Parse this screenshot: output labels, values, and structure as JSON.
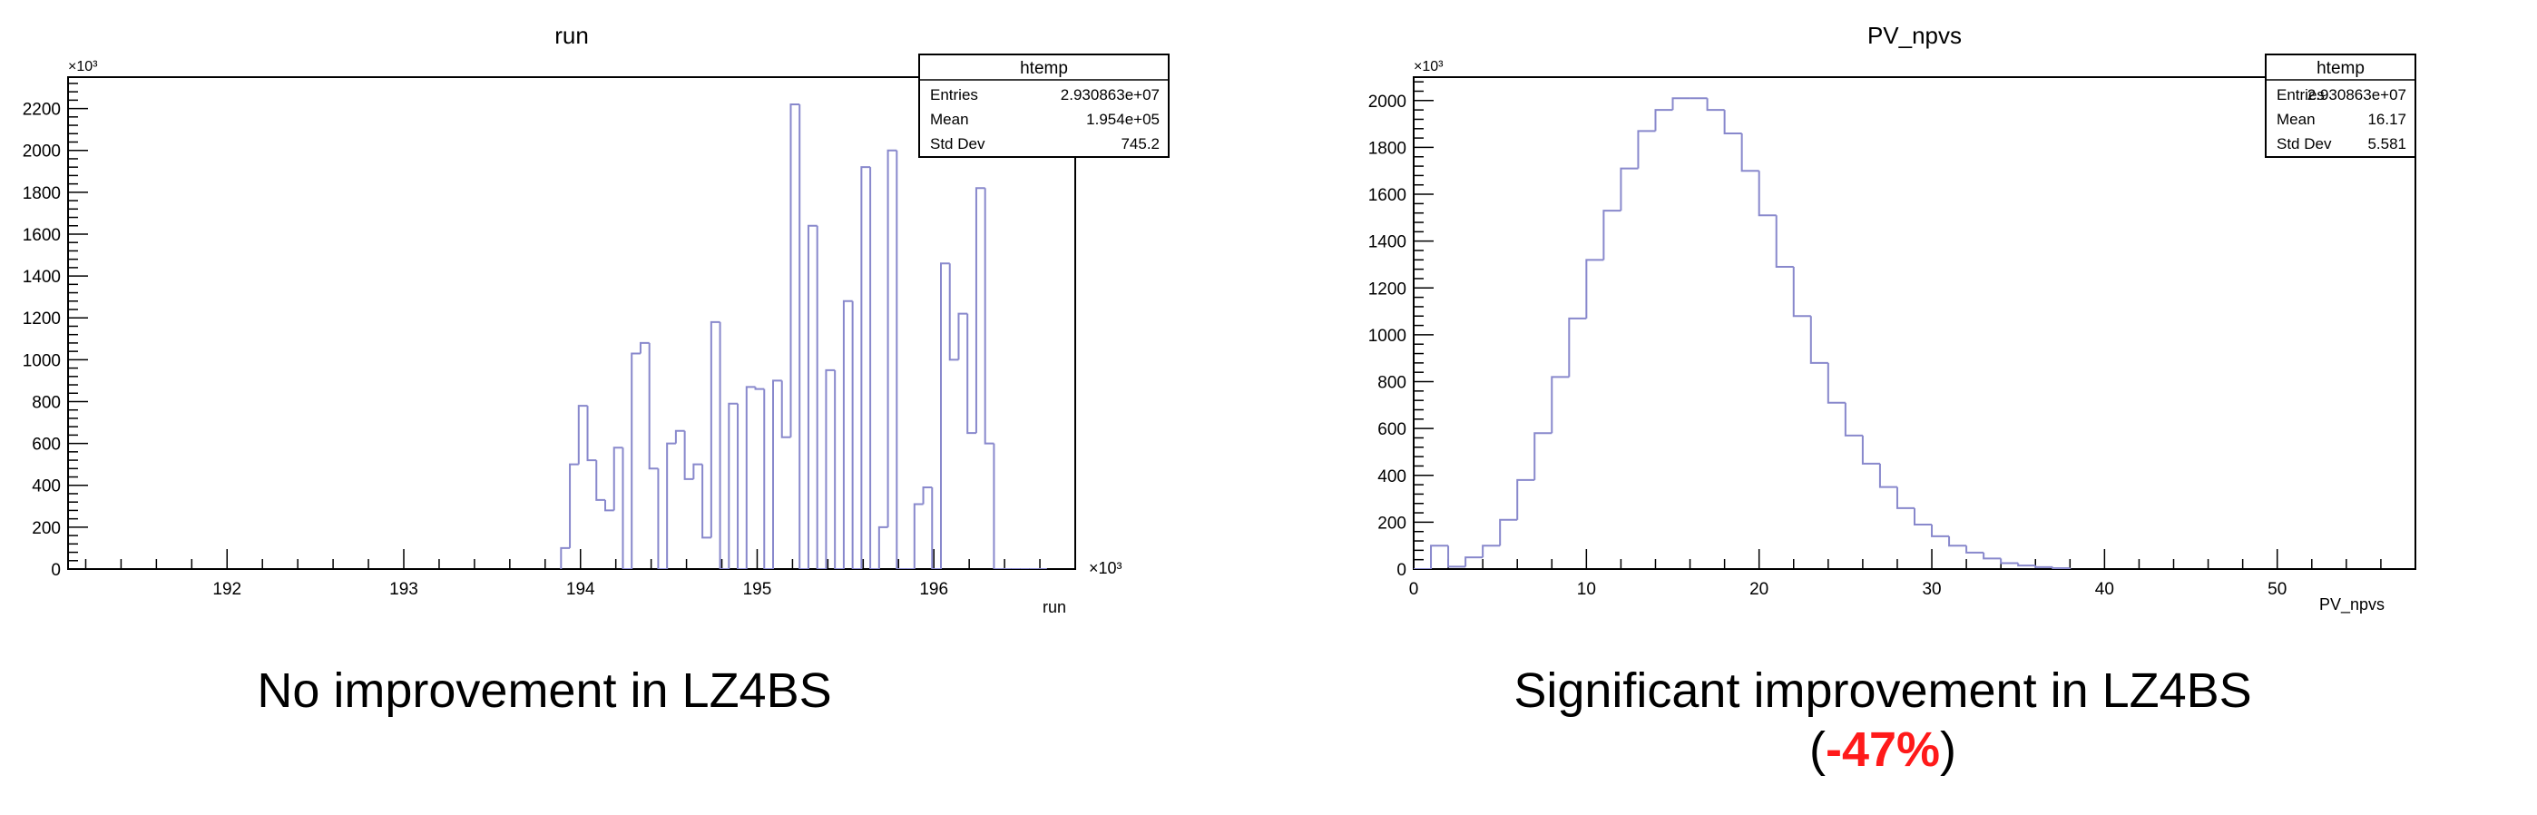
{
  "chart_data": [
    {
      "type": "histogram",
      "title": "run",
      "xlabel": "run",
      "x_exponent": "×10³",
      "y_exponent": "×10³",
      "xlim": [
        191.1,
        196.8
      ],
      "ylim": [
        0,
        2350
      ],
      "xticks": [
        192,
        193,
        194,
        195,
        196
      ],
      "yticks": [
        0,
        200,
        400,
        600,
        800,
        1000,
        1200,
        1400,
        1600,
        1800,
        2000,
        2200
      ],
      "bin_edges": [
        193.89,
        193.94,
        193.99,
        194.04,
        194.09,
        194.14,
        194.19,
        194.24,
        194.29,
        194.34,
        194.39,
        194.44,
        194.49,
        194.54,
        194.59,
        194.64,
        194.69,
        194.74,
        194.79,
        194.84,
        194.89,
        194.94,
        194.99,
        195.04,
        195.09,
        195.14,
        195.19,
        195.24,
        195.29,
        195.34,
        195.39,
        195.44,
        195.49,
        195.54,
        195.59,
        195.64,
        195.69,
        195.74,
        195.79,
        195.84,
        195.89,
        195.94,
        195.99,
        196.04,
        196.09,
        196.14,
        196.19,
        196.24,
        196.29,
        196.34,
        196.39,
        196.44,
        196.49,
        196.54,
        196.59,
        196.64
      ],
      "values": [
        100,
        500,
        780,
        520,
        330,
        280,
        580,
        0,
        1030,
        1080,
        480,
        0,
        600,
        660,
        430,
        500,
        150,
        1180,
        0,
        790,
        0,
        870,
        860,
        0,
        900,
        630,
        2220,
        0,
        1640,
        0,
        950,
        0,
        1280,
        0,
        1920,
        0,
        200,
        2000,
        0,
        0,
        310,
        390,
        0,
        1460,
        1000,
        1220,
        650,
        1820,
        600,
        0,
        0,
        0,
        0,
        0,
        0
      ],
      "line_color": "#8888cc",
      "stats": {
        "header": "htemp",
        "rows": [
          {
            "label": "Entries",
            "value": "2.930863e+07"
          },
          {
            "label": "Mean",
            "value": "1.954e+05"
          },
          {
            "label": "Std Dev",
            "value": "745.2"
          }
        ]
      }
    },
    {
      "type": "histogram",
      "title": "PV_npvs",
      "xlabel": "PV_npvs",
      "x_exponent": "",
      "y_exponent": "×10³",
      "xlim": [
        0,
        58
      ],
      "ylim": [
        0,
        2100
      ],
      "xticks": [
        0,
        10,
        20,
        30,
        40,
        50
      ],
      "yticks": [
        0,
        200,
        400,
        600,
        800,
        1000,
        1200,
        1400,
        1600,
        1800,
        2000
      ],
      "bin_edges": [
        0,
        1,
        2,
        3,
        4,
        5,
        6,
        7,
        8,
        9,
        10,
        11,
        12,
        13,
        14,
        15,
        16,
        17,
        18,
        19,
        20,
        21,
        22,
        23,
        24,
        25,
        26,
        27,
        28,
        29,
        30,
        31,
        32,
        33,
        34,
        35,
        36,
        37,
        38
      ],
      "values": [
        0,
        100,
        10,
        50,
        100,
        210,
        380,
        580,
        820,
        1070,
        1320,
        1530,
        1710,
        1870,
        1960,
        2010,
        2010,
        1960,
        1860,
        1700,
        1510,
        1290,
        1080,
        880,
        710,
        570,
        450,
        350,
        260,
        190,
        140,
        100,
        70,
        45,
        25,
        15,
        8,
        4
      ],
      "line_color": "#8888cc",
      "stats": {
        "header": "htemp",
        "rows": [
          {
            "label": "Entries",
            "value": "2.930863e+07"
          },
          {
            "label": "Mean",
            "value": "16.17"
          },
          {
            "label": "Std Dev",
            "value": "5.581"
          }
        ]
      }
    }
  ],
  "captions": {
    "left": "No improvement in LZ4BS",
    "right_line1": "Significant improvement in LZ4BS",
    "right_open": "(",
    "right_pct": "-47%",
    "right_close": ")"
  }
}
